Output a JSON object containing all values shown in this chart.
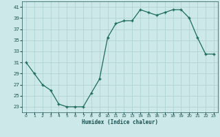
{
  "x": [
    0,
    1,
    2,
    3,
    4,
    5,
    6,
    7,
    8,
    9,
    10,
    11,
    12,
    13,
    14,
    15,
    16,
    17,
    18,
    19,
    20,
    21,
    22,
    23
  ],
  "y": [
    31,
    29,
    27,
    26,
    23.5,
    23,
    23,
    23,
    25.5,
    28,
    35.5,
    38,
    38.5,
    38.5,
    40.5,
    40,
    39.5,
    40,
    40.5,
    40.5,
    39,
    35.5,
    32.5,
    32.5
  ],
  "xlabel": "Humidex (Indice chaleur)",
  "xlim": [
    -0.5,
    23.5
  ],
  "ylim": [
    22,
    42
  ],
  "yticks": [
    23,
    25,
    27,
    29,
    31,
    33,
    35,
    37,
    39,
    41
  ],
  "xticks": [
    0,
    1,
    2,
    3,
    4,
    5,
    6,
    7,
    8,
    9,
    10,
    11,
    12,
    13,
    14,
    15,
    16,
    17,
    18,
    19,
    20,
    21,
    22,
    23
  ],
  "line_color": "#1a6b5a",
  "bg_color": "#cce8e8",
  "grid_color": "#aacfcf",
  "tick_color": "#1a5050",
  "spine_color": "#1a5050",
  "xlabel_color": "#1a5050"
}
